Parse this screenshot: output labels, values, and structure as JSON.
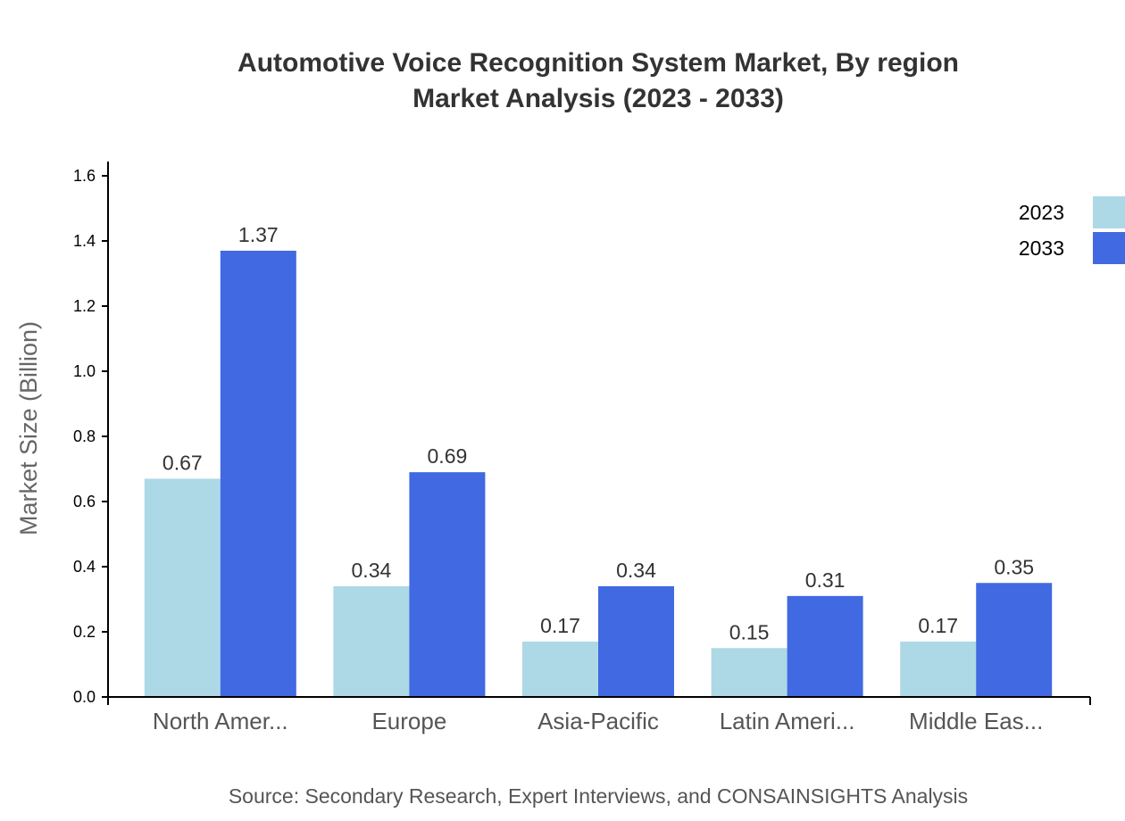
{
  "chart_data": {
    "type": "bar",
    "title": "Automotive Voice Recognition System Market, By region",
    "subtitle": "Market Analysis (2023 - 2033)",
    "ylabel": "Market Size (Billion)",
    "xlabel": "",
    "ylim": [
      0,
      1.6
    ],
    "yticks": [
      "0.0",
      "0.2",
      "0.4",
      "0.6",
      "0.8",
      "1.0",
      "1.2",
      "1.4",
      "1.6"
    ],
    "categories": [
      "North Amer...",
      "Europe",
      "Asia-Pacific",
      "Latin Ameri...",
      "Middle Eas..."
    ],
    "series": [
      {
        "name": "2023",
        "color": "#add8e6",
        "values": [
          0.67,
          0.34,
          0.17,
          0.15,
          0.17
        ]
      },
      {
        "name": "2033",
        "color": "#4169e1",
        "values": [
          1.37,
          0.69,
          0.34,
          0.31,
          0.35
        ]
      }
    ],
    "legend_position": "top-right",
    "grid": false,
    "source": "Source: Secondary Research, Expert Interviews, and CONSAINSIGHTS Analysis"
  }
}
